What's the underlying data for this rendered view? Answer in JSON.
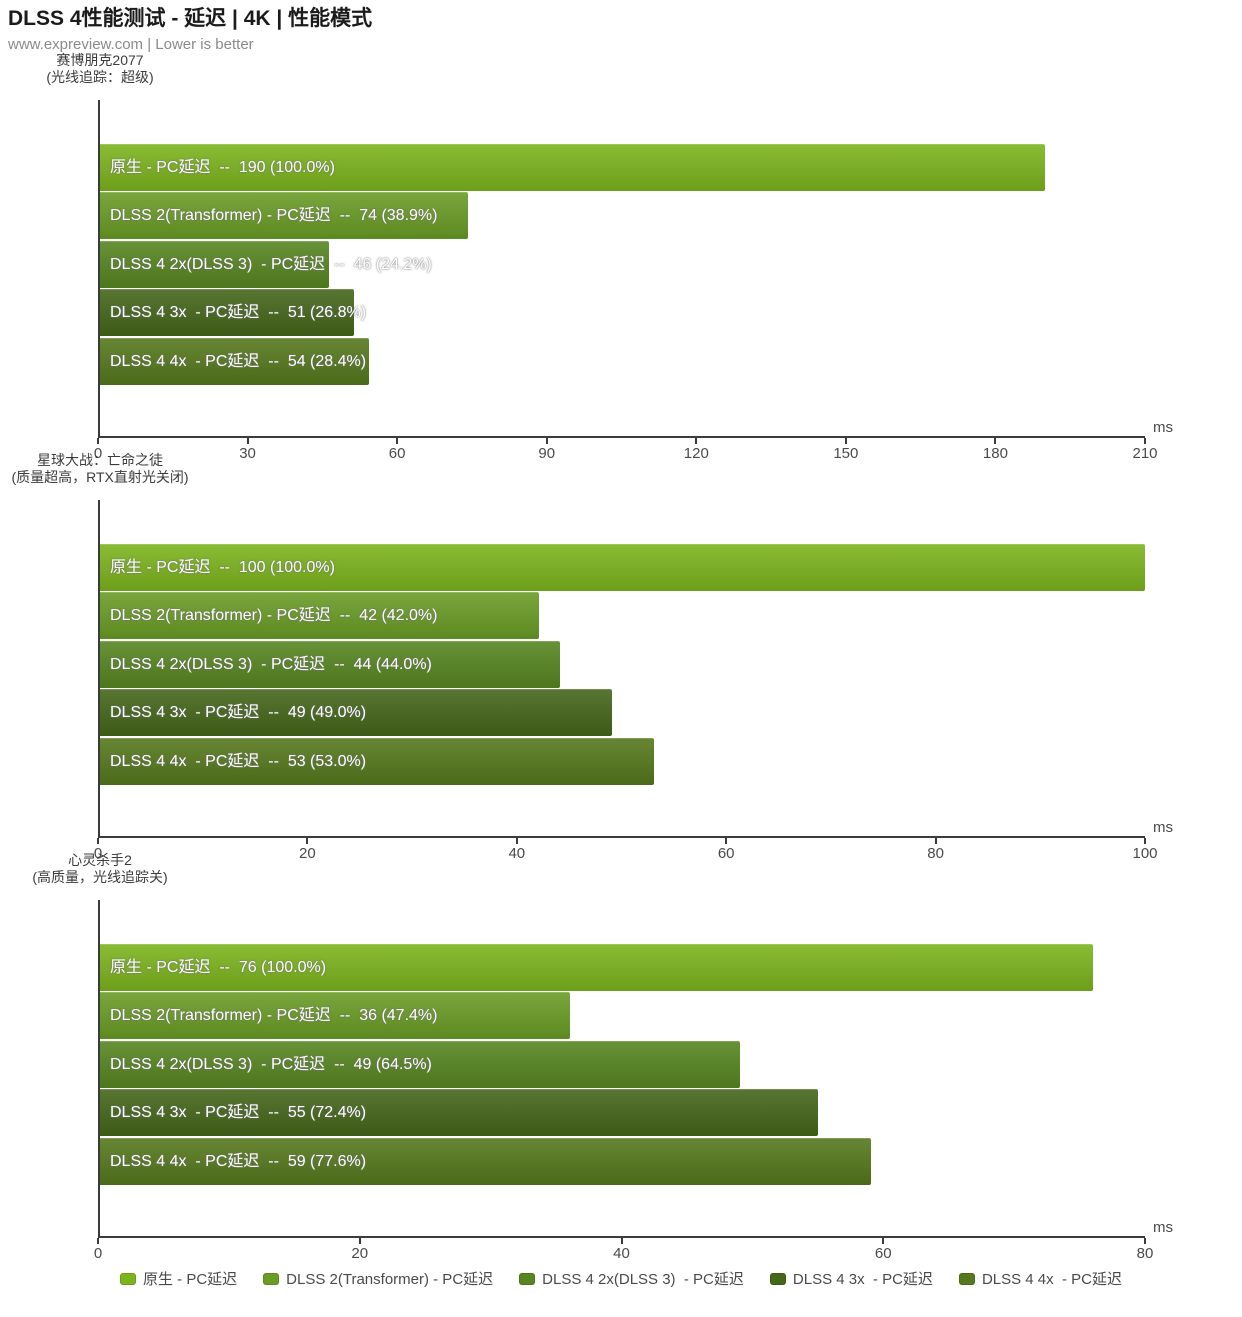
{
  "page": {
    "title": "DLSS 4性能测试 - 延迟 | 4K | 性能模式",
    "subtitle": "www.expreview.com | Lower is better"
  },
  "unit_label": "ms",
  "palette": [
    "#7CB41E",
    "#6A9C26",
    "#578621",
    "#45671A",
    "#56791D"
  ],
  "legend": [
    {
      "label": "原生 - PC延迟",
      "color": "#7CB41E"
    },
    {
      "label": "DLSS 2(Transformer) - PC延迟",
      "color": "#6A9C26"
    },
    {
      "label": "DLSS 4 2x(DLSS 3)  - PC延迟",
      "color": "#578621"
    },
    {
      "label": "DLSS 4 3x  - PC延迟",
      "color": "#45671A"
    },
    {
      "label": "DLSS 4 4x  - PC延迟",
      "color": "#56791D"
    }
  ],
  "chart_data": [
    {
      "type": "bar",
      "orientation": "horizontal",
      "title": "赛博朋克2077",
      "subtitle": "(光线追踪：超级)",
      "unit": "ms",
      "xlim": [
        0,
        210
      ],
      "xticks": [
        0,
        30,
        60,
        90,
        120,
        150,
        180,
        210
      ],
      "bars": [
        {
          "name": "原生 - PC延迟",
          "value": 190,
          "pct_of_native": 100.0,
          "label": "原生 - PC延迟  --  190 (100.0%)"
        },
        {
          "name": "DLSS 2(Transformer) - PC延迟",
          "value": 74,
          "pct_of_native": 38.9,
          "label": "DLSS 2(Transformer) - PC延迟  --  74 (38.9%)"
        },
        {
          "name": "DLSS 4 2x(DLSS 3) - PC延迟",
          "value": 46,
          "pct_of_native": 24.2,
          "label": "DLSS 4 2x(DLSS 3)  - PC延迟  --  46 (24.2%)"
        },
        {
          "name": "DLSS 4 3x - PC延迟",
          "value": 51,
          "pct_of_native": 26.8,
          "label": "DLSS 4 3x  - PC延迟  --  51 (26.8%)"
        },
        {
          "name": "DLSS 4 4x - PC延迟",
          "value": 54,
          "pct_of_native": 28.4,
          "label": "DLSS 4 4x  - PC延迟  --  54 (28.4%)"
        }
      ]
    },
    {
      "type": "bar",
      "orientation": "horizontal",
      "title": "星球大战：亡命之徒",
      "subtitle": "(质量超高，RTX直射光关闭)",
      "unit": "ms",
      "xlim": [
        0,
        100
      ],
      "xticks": [
        0,
        20,
        40,
        60,
        80,
        100
      ],
      "bars": [
        {
          "name": "原生 - PC延迟",
          "value": 100,
          "pct_of_native": 100.0,
          "label": "原生 - PC延迟  --  100 (100.0%)"
        },
        {
          "name": "DLSS 2(Transformer) - PC延迟",
          "value": 42,
          "pct_of_native": 42.0,
          "label": "DLSS 2(Transformer) - PC延迟  --  42 (42.0%)"
        },
        {
          "name": "DLSS 4 2x(DLSS 3) - PC延迟",
          "value": 44,
          "pct_of_native": 44.0,
          "label": "DLSS 4 2x(DLSS 3)  - PC延迟  --  44 (44.0%)"
        },
        {
          "name": "DLSS 4 3x - PC延迟",
          "value": 49,
          "pct_of_native": 49.0,
          "label": "DLSS 4 3x  - PC延迟  --  49 (49.0%)"
        },
        {
          "name": "DLSS 4 4x - PC延迟",
          "value": 53,
          "pct_of_native": 53.0,
          "label": "DLSS 4 4x  - PC延迟  --  53 (53.0%)"
        }
      ]
    },
    {
      "type": "bar",
      "orientation": "horizontal",
      "title": "心灵杀手2",
      "subtitle": "(高质量，光线追踪关)",
      "unit": "ms",
      "xlim": [
        0,
        80
      ],
      "xticks": [
        0,
        20,
        40,
        60,
        80
      ],
      "bars": [
        {
          "name": "原生 - PC延迟",
          "value": 76,
          "pct_of_native": 100.0,
          "label": "原生 - PC延迟  --  76 (100.0%)"
        },
        {
          "name": "DLSS 2(Transformer) - PC延迟",
          "value": 36,
          "pct_of_native": 47.4,
          "label": "DLSS 2(Transformer) - PC延迟  --  36 (47.4%)"
        },
        {
          "name": "DLSS 4 2x(DLSS 3) - PC延迟",
          "value": 49,
          "pct_of_native": 64.5,
          "label": "DLSS 4 2x(DLSS 3)  - PC延迟  --  49 (64.5%)"
        },
        {
          "name": "DLSS 4 3x - PC延迟",
          "value": 55,
          "pct_of_native": 72.4,
          "label": "DLSS 4 3x  - PC延迟  --  55 (72.4%)"
        },
        {
          "name": "DLSS 4 4x - PC延迟",
          "value": 59,
          "pct_of_native": 77.6,
          "label": "DLSS 4 4x  - PC延迟  --  59 (77.6%)"
        }
      ]
    }
  ]
}
